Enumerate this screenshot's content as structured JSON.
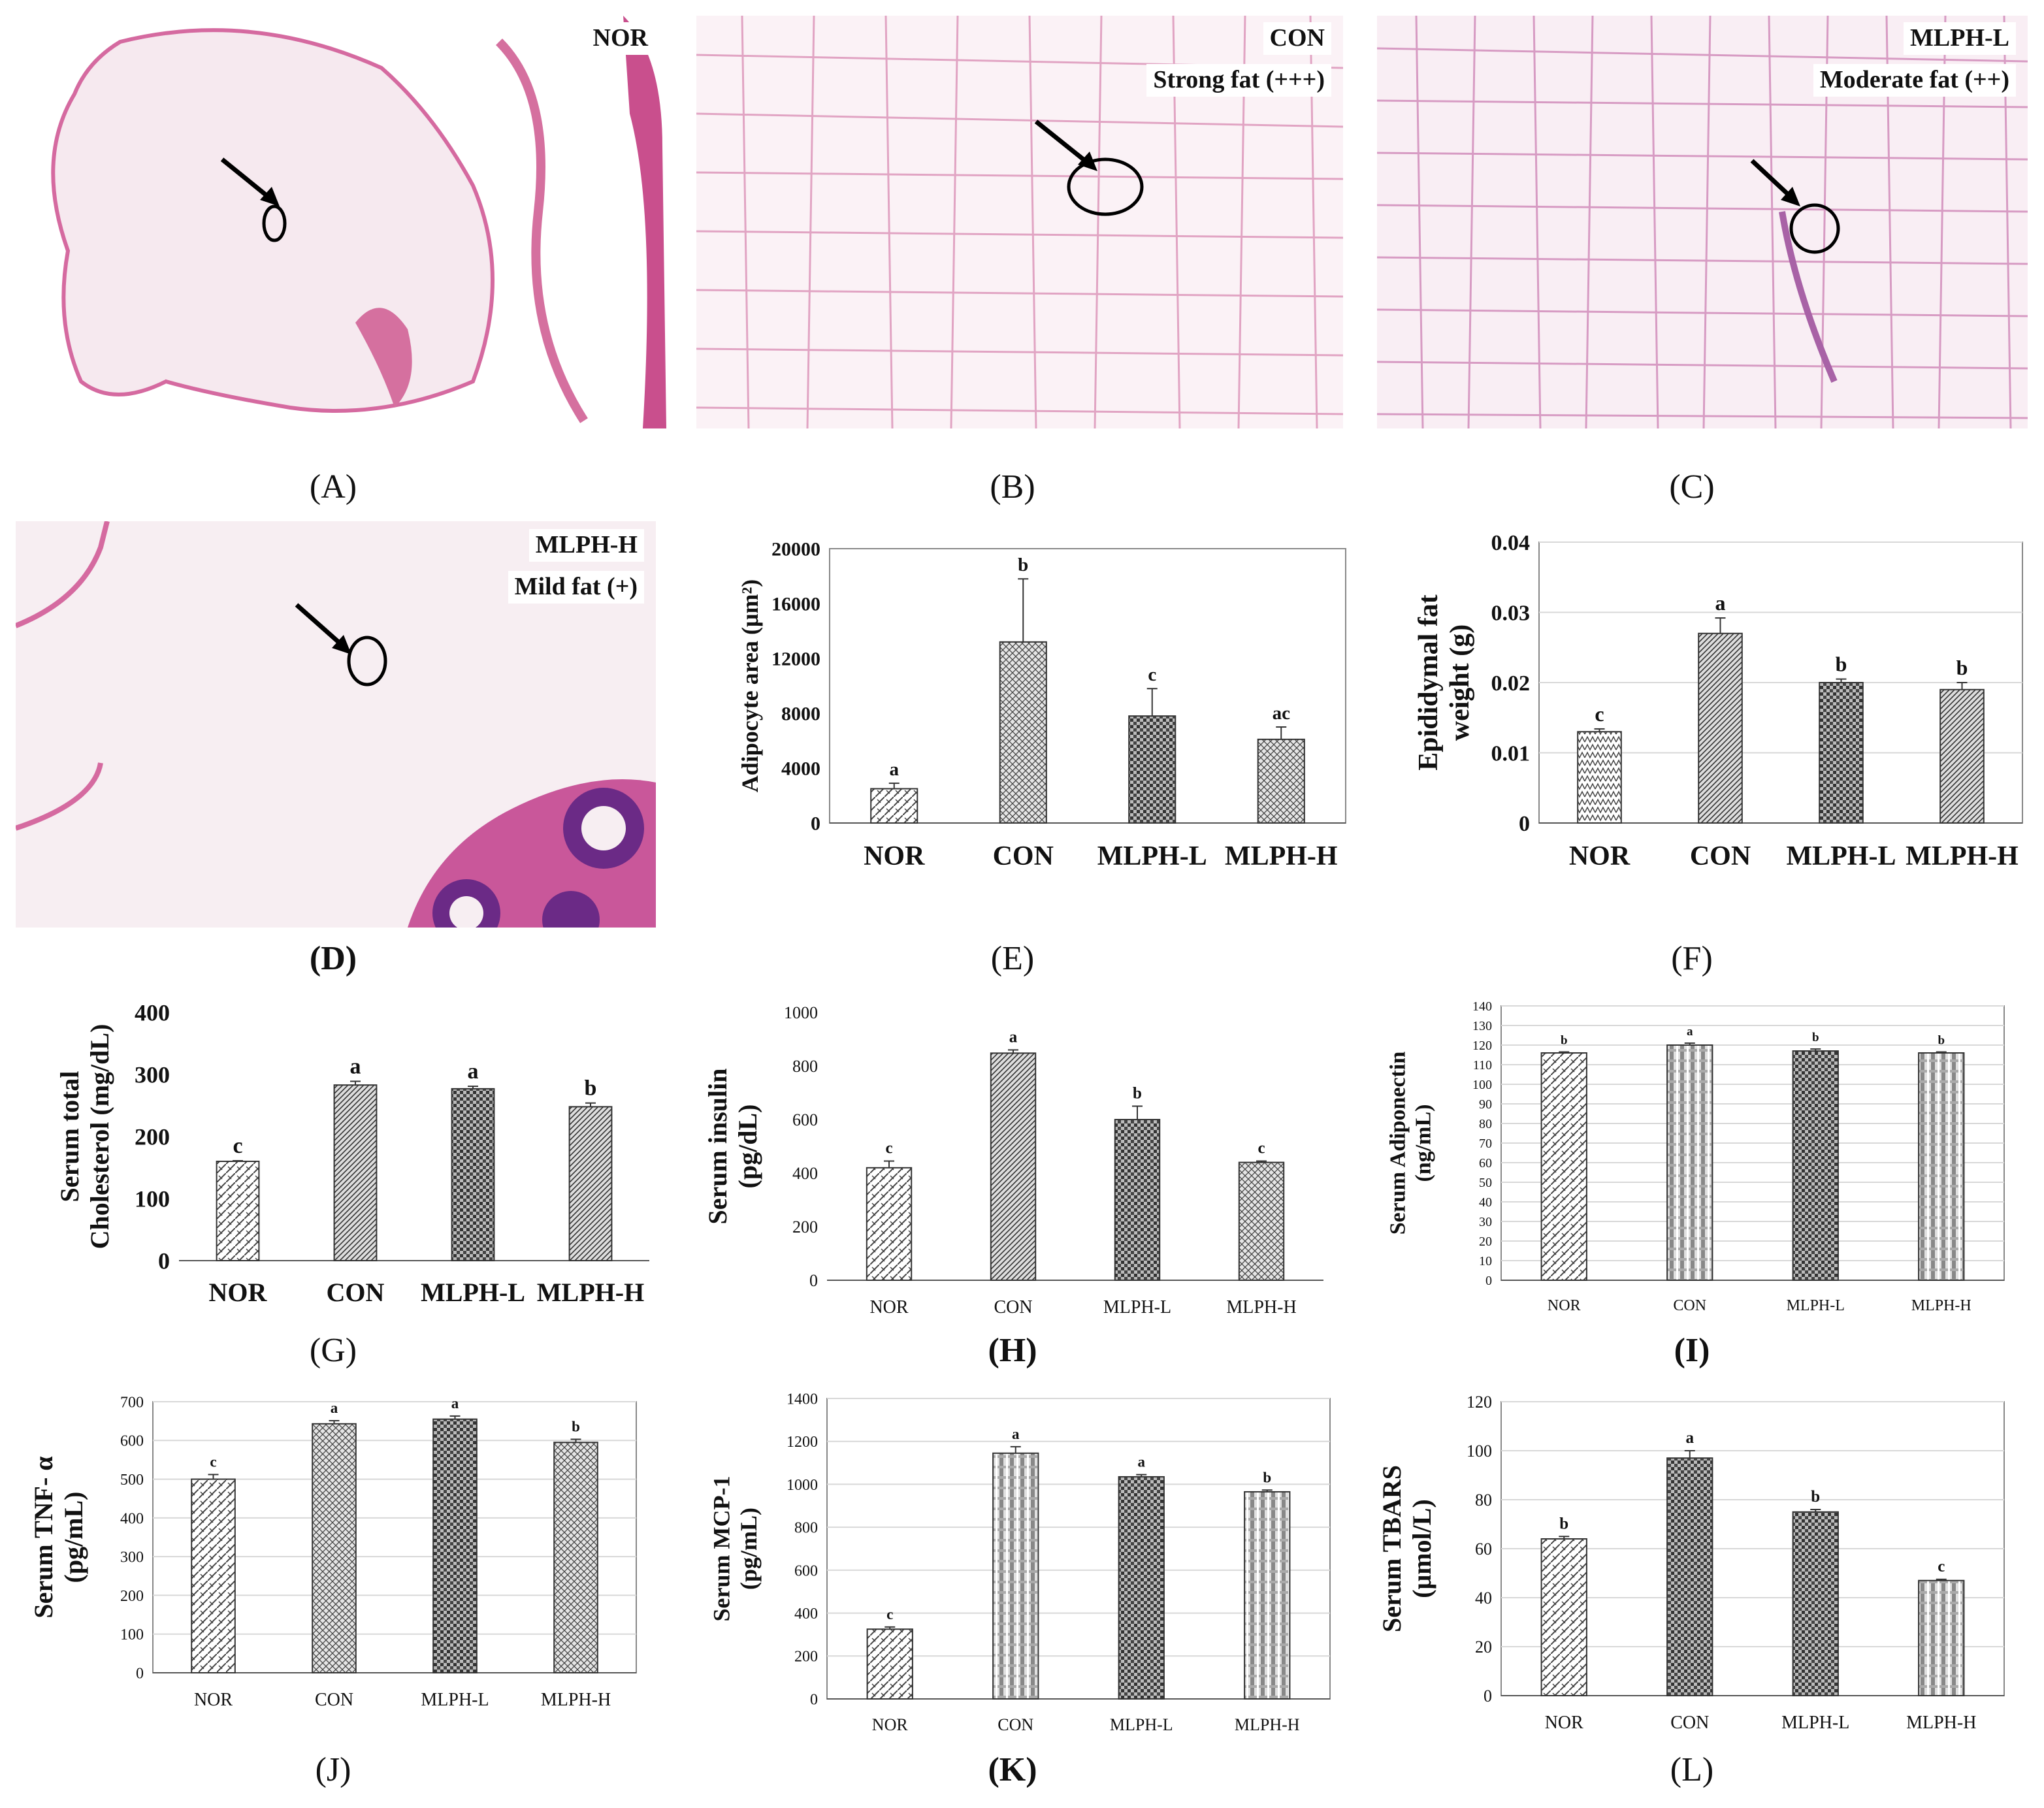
{
  "panels": [
    {
      "id": "A",
      "letter": "(A)",
      "tag": "NOR",
      "tag2": ""
    },
    {
      "id": "B",
      "letter": "(B)",
      "tag": "CON",
      "tag2": "Strong fat (+++)"
    },
    {
      "id": "C",
      "letter": "(C)",
      "tag": "MLPH-L",
      "tag2": "Moderate fat (++)"
    },
    {
      "id": "D",
      "letter": "(D)",
      "tag": "MLPH-H",
      "tag2": "Mild fat (+)"
    }
  ],
  "colors": {
    "stain_pink": "#e8a6c4",
    "stain_purple": "#9b4f9a",
    "bar_fill": "#ffffff",
    "bar_stroke": "#333333"
  },
  "chart_data": [
    {
      "id": "E",
      "letter": "(E)",
      "type": "bar",
      "categories": [
        "NOR",
        "CON",
        "MLPH-L",
        "MLPH-H"
      ],
      "values": [
        2500,
        13200,
        7800,
        6100
      ],
      "errors": [
        400,
        4600,
        2000,
        900
      ],
      "labels": [
        "a",
        "b",
        "c",
        "ac"
      ],
      "ylabel": "Adipocyte area (μm²)",
      "ylim": [
        0,
        20000
      ],
      "yticks": [
        0,
        4000,
        8000,
        12000,
        16000,
        20000
      ],
      "grid": false,
      "patterns": [
        "pDiag",
        "pCross",
        "pCheck",
        "pCross"
      ]
    },
    {
      "id": "F",
      "letter": "(F)",
      "type": "bar",
      "categories": [
        "NOR",
        "CON",
        "MLPH-L",
        "MLPH-H"
      ],
      "values": [
        0.013,
        0.027,
        0.02,
        0.019
      ],
      "errors": [
        0.0004,
        0.0022,
        0.0005,
        0.001
      ],
      "labels": [
        "c",
        "a",
        "b",
        "b"
      ],
      "ylabel": "Epididymal fat\nweight (g)",
      "ylim": [
        0,
        0.04
      ],
      "yticks": [
        0,
        0.01,
        0.02,
        0.03,
        0.04
      ],
      "grid": true,
      "patterns": [
        "pZig",
        "pStripe",
        "pCheck",
        "pStripe"
      ]
    },
    {
      "id": "G",
      "letter": "(G)",
      "type": "bar",
      "categories": [
        "NOR",
        "CON",
        "MLPH-L",
        "MLPH-H"
      ],
      "values": [
        160,
        283,
        277,
        248
      ],
      "errors": [
        1,
        6,
        4,
        6
      ],
      "labels": [
        "c",
        "a",
        "a",
        "b"
      ],
      "ylabel": "Serum total\nCholesterol (mg/dL)",
      "ylim": [
        0,
        400
      ],
      "yticks": [
        0,
        100,
        200,
        300,
        400
      ],
      "grid": false,
      "patterns": [
        "pDiag",
        "pStripe",
        "pCheck",
        "pStripe"
      ]
    },
    {
      "id": "H",
      "letter": "(H)",
      "type": "bar",
      "categories": [
        "NOR",
        "CON",
        "MLPH-L",
        "MLPH-H"
      ],
      "values": [
        420,
        848,
        600,
        440
      ],
      "errors": [
        25,
        12,
        50,
        5
      ],
      "labels": [
        "c",
        "a",
        "b",
        "c"
      ],
      "ylabel": "Serum insulin\n(pg/dL)",
      "ylim": [
        0,
        1000
      ],
      "yticks": [
        0,
        200,
        400,
        600,
        800,
        1000
      ],
      "grid": false,
      "patterns": [
        "pDiag",
        "pStripe",
        "pCheck",
        "pCross"
      ]
    },
    {
      "id": "I",
      "letter": "(I)",
      "type": "bar",
      "categories": [
        "NOR",
        "CON",
        "MLPH-L",
        "MLPH-H"
      ],
      "values": [
        116,
        120,
        117,
        116
      ],
      "errors": [
        0.5,
        1,
        1,
        0.5
      ],
      "labels": [
        "b",
        "a",
        "b",
        "b"
      ],
      "ylabel": "Serum Adiponectin\n(ng/mL)",
      "ylim": [
        0,
        140
      ],
      "yticks": [
        0,
        10,
        20,
        30,
        40,
        50,
        60,
        70,
        80,
        90,
        100,
        110,
        120,
        130,
        140
      ],
      "grid": true,
      "patterns": [
        "pDiag",
        "pPlaid",
        "pCheck",
        "pPlaid"
      ]
    },
    {
      "id": "J",
      "letter": "(J)",
      "type": "bar",
      "categories": [
        "NOR",
        "CON",
        "MLPH-L",
        "MLPH-H"
      ],
      "values": [
        500,
        643,
        655,
        595
      ],
      "errors": [
        12,
        8,
        8,
        8
      ],
      "labels": [
        "c",
        "a",
        "a",
        "b"
      ],
      "ylabel": "Serum TNF- α\n(pg/mL)",
      "ylim": [
        0,
        700
      ],
      "yticks": [
        0,
        100,
        200,
        300,
        400,
        500,
        600,
        700
      ],
      "grid": true,
      "patterns": [
        "pDiag",
        "pCross",
        "pCheck",
        "pCross"
      ]
    },
    {
      "id": "K",
      "letter": "(K)",
      "type": "bar",
      "categories": [
        "NOR",
        "CON",
        "MLPH-L",
        "MLPH-H"
      ],
      "values": [
        325,
        1145,
        1035,
        965
      ],
      "errors": [
        10,
        30,
        10,
        8
      ],
      "labels": [
        "c",
        "a",
        "a",
        "b"
      ],
      "ylabel": "Serum MCP-1\n(pg/mL)",
      "ylim": [
        0,
        1400
      ],
      "yticks": [
        0,
        200,
        400,
        600,
        800,
        1000,
        1200,
        1400
      ],
      "grid": true,
      "patterns": [
        "pDiag",
        "pPlaid",
        "pCheck",
        "pPlaid"
      ]
    },
    {
      "id": "L",
      "letter": "(L)",
      "type": "bar",
      "categories": [
        "NOR",
        "CON",
        "MLPH-L",
        "MLPH-H"
      ],
      "values": [
        64,
        97,
        75,
        47
      ],
      "errors": [
        1,
        3,
        1,
        0.5
      ],
      "labels": [
        "b",
        "a",
        "b",
        "c"
      ],
      "ylabel": "Serum TBARS\n(μmol/L)",
      "ylim": [
        0,
        120
      ],
      "yticks": [
        0,
        20,
        40,
        60,
        80,
        100,
        120
      ],
      "grid": true,
      "patterns": [
        "pDiag",
        "pCheck",
        "pCheck",
        "pPlaid"
      ]
    }
  ]
}
